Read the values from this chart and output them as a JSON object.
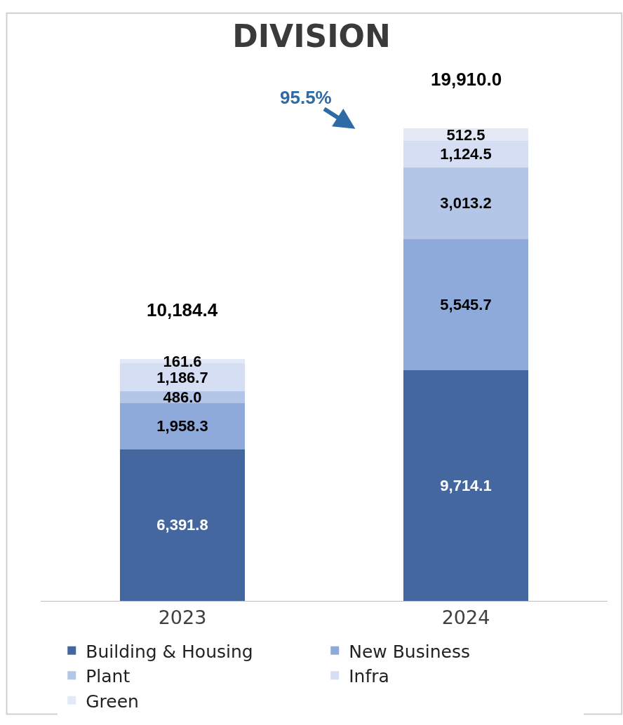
{
  "chart_data": {
    "type": "bar",
    "title": "DIVISION",
    "stacked": true,
    "categories": [
      "2023",
      "2024"
    ],
    "series": [
      {
        "name": "Building & Housing",
        "color": "#44679f",
        "values": [
          6391.8,
          9714.1
        ],
        "value_labels": [
          "6,391.8",
          "9,714.1"
        ]
      },
      {
        "name": "New Business",
        "color": "#8eaadb",
        "values": [
          1958.3,
          5545.7
        ],
        "value_labels": [
          "1,958.3",
          "5,545.7"
        ]
      },
      {
        "name": "Plant",
        "color": "#b4c6e7",
        "values": [
          486.0,
          3013.2
        ],
        "value_labels": [
          "486.0",
          "3,013.2"
        ]
      },
      {
        "name": "Infra",
        "color": "#d5def2",
        "values": [
          1186.7,
          1124.5
        ],
        "value_labels": [
          "1,186.7",
          "1,124.5"
        ]
      },
      {
        "name": "Green",
        "color": "#e3eaf6",
        "values": [
          161.6,
          512.5
        ],
        "value_labels": [
          "161.6",
          "512.5"
        ]
      }
    ],
    "totals": [
      "10,184.4",
      "19,910.0"
    ],
    "annotations": [
      "95.5%"
    ],
    "legend": "bottom"
  }
}
